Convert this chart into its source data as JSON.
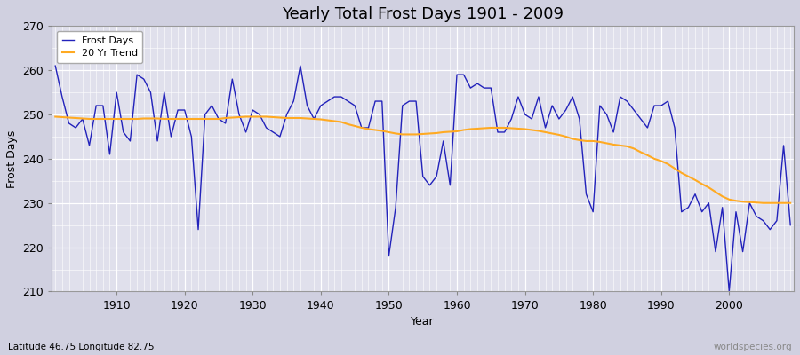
{
  "title": "Yearly Total Frost Days 1901 - 2009",
  "xlabel": "Year",
  "ylabel": "Frost Days",
  "subtitle": "Latitude 46.75 Longitude 82.75",
  "watermark": "worldspecies.org",
  "legend": [
    "Frost Days",
    "20 Yr Trend"
  ],
  "line_color": "#2222bb",
  "trend_color": "#ffaa22",
  "plot_bg_color": "#e0e0ec",
  "fig_bg_color": "#d0d0e0",
  "ylim": [
    210,
    270
  ],
  "xlim": [
    1901,
    2009
  ],
  "yticks": [
    210,
    220,
    230,
    240,
    250,
    260,
    270
  ],
  "xticks": [
    1910,
    1920,
    1930,
    1940,
    1950,
    1960,
    1970,
    1980,
    1990,
    2000
  ],
  "years": [
    1901,
    1902,
    1903,
    1904,
    1905,
    1906,
    1907,
    1908,
    1909,
    1910,
    1911,
    1912,
    1913,
    1914,
    1915,
    1916,
    1917,
    1918,
    1919,
    1920,
    1921,
    1922,
    1923,
    1924,
    1925,
    1926,
    1927,
    1928,
    1929,
    1930,
    1931,
    1932,
    1933,
    1934,
    1935,
    1936,
    1937,
    1938,
    1939,
    1940,
    1941,
    1942,
    1943,
    1944,
    1945,
    1946,
    1947,
    1948,
    1949,
    1950,
    1951,
    1952,
    1953,
    1954,
    1955,
    1956,
    1957,
    1958,
    1959,
    1960,
    1961,
    1962,
    1963,
    1964,
    1965,
    1966,
    1967,
    1968,
    1969,
    1970,
    1971,
    1972,
    1973,
    1974,
    1975,
    1976,
    1977,
    1978,
    1979,
    1980,
    1981,
    1982,
    1983,
    1984,
    1985,
    1986,
    1987,
    1988,
    1989,
    1990,
    1991,
    1992,
    1993,
    1994,
    1995,
    1996,
    1997,
    1998,
    1999,
    2000,
    2001,
    2002,
    2003,
    2004,
    2005,
    2006,
    2007,
    2008,
    2009
  ],
  "frost_days": [
    261,
    254,
    248,
    247,
    249,
    243,
    252,
    252,
    241,
    255,
    246,
    244,
    259,
    258,
    255,
    244,
    255,
    245,
    251,
    251,
    245,
    224,
    250,
    252,
    249,
    248,
    258,
    250,
    246,
    251,
    250,
    247,
    246,
    245,
    250,
    253,
    261,
    252,
    249,
    252,
    253,
    254,
    254,
    253,
    252,
    247,
    247,
    253,
    253,
    218,
    229,
    252,
    253,
    253,
    236,
    234,
    236,
    244,
    234,
    259,
    259,
    256,
    257,
    256,
    256,
    246,
    246,
    249,
    254,
    250,
    249,
    254,
    247,
    252,
    249,
    251,
    254,
    249,
    232,
    228,
    252,
    250,
    246,
    254,
    253,
    251,
    249,
    247,
    252,
    252,
    253,
    247,
    228,
    229,
    232,
    228,
    230,
    219,
    229,
    210,
    228,
    219,
    230,
    227,
    226,
    224,
    226,
    243,
    225
  ],
  "trend_values": [
    249.5,
    249.4,
    249.3,
    249.2,
    249.1,
    249.0,
    249.0,
    249.0,
    249.0,
    249.0,
    249.0,
    249.0,
    249.0,
    249.1,
    249.1,
    249.1,
    249.0,
    249.0,
    249.0,
    249.0,
    249.0,
    249.0,
    249.0,
    249.0,
    249.0,
    249.2,
    249.3,
    249.4,
    249.5,
    249.5,
    249.5,
    249.5,
    249.4,
    249.3,
    249.2,
    249.2,
    249.2,
    249.1,
    249.0,
    248.9,
    248.7,
    248.5,
    248.3,
    247.8,
    247.4,
    247.0,
    246.7,
    246.5,
    246.3,
    246.0,
    245.7,
    245.5,
    245.5,
    245.5,
    245.6,
    245.7,
    245.8,
    246.0,
    246.1,
    246.2,
    246.5,
    246.7,
    246.8,
    246.9,
    247.0,
    247.0,
    247.0,
    246.9,
    246.8,
    246.7,
    246.5,
    246.3,
    246.0,
    245.7,
    245.4,
    245.0,
    244.5,
    244.2,
    244.0,
    244.0,
    243.8,
    243.5,
    243.2,
    243.0,
    242.8,
    242.3,
    241.5,
    240.8,
    240.0,
    239.5,
    238.8,
    237.8,
    236.8,
    236.0,
    235.2,
    234.3,
    233.5,
    232.5,
    231.5,
    230.8,
    230.5,
    230.3,
    230.2,
    230.1,
    230.0,
    230.0,
    230.0,
    230.0,
    230.0
  ]
}
